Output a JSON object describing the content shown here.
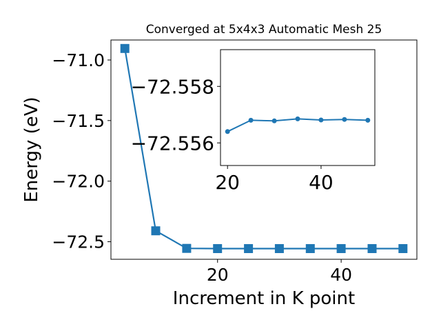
{
  "chart_data": [
    {
      "type": "line",
      "title": "Converged at 5x4x3 Automatic Mesh 25",
      "xlabel": "Increment in K point",
      "ylabel": "Energy (eV)",
      "xlim": [
        2.75,
        52.25
      ],
      "ylim": [
        -72.645,
        -70.835
      ],
      "xticks": [
        20,
        40
      ],
      "yticks": [
        -71.0,
        -71.5,
        -72.0,
        -72.5
      ],
      "xtick_labels": [
        "20",
        "40"
      ],
      "ytick_labels": [
        "−71.0",
        "−71.5",
        "−72.0",
        "−72.5"
      ],
      "grid": false,
      "marker": "square",
      "color": "#1f77b4",
      "x": [
        5,
        10,
        15,
        20,
        25,
        30,
        35,
        40,
        45,
        50
      ],
      "y": [
        -70.905,
        -72.41,
        -72.555,
        -72.557,
        -72.557,
        -72.557,
        -72.557,
        -72.557,
        -72.557,
        -72.557
      ]
    },
    {
      "type": "line",
      "title": "",
      "xlabel": "",
      "ylabel": "",
      "xlim": [
        18.5,
        51.5
      ],
      "ylim": [
        -72.5552,
        -72.5593
      ],
      "xticks": [
        20,
        40
      ],
      "yticks": [
        -72.558,
        -72.556
      ],
      "xtick_labels": [
        "20",
        "40"
      ],
      "ytick_labels": [
        "−72.558",
        "−72.556"
      ],
      "grid": false,
      "marker": "circle",
      "color": "#1f77b4",
      "x": [
        20,
        25,
        30,
        35,
        40,
        45,
        50
      ],
      "y": [
        -72.5564,
        -72.5568,
        -72.55678,
        -72.55685,
        -72.55681,
        -72.55683,
        -72.5568
      ]
    }
  ]
}
